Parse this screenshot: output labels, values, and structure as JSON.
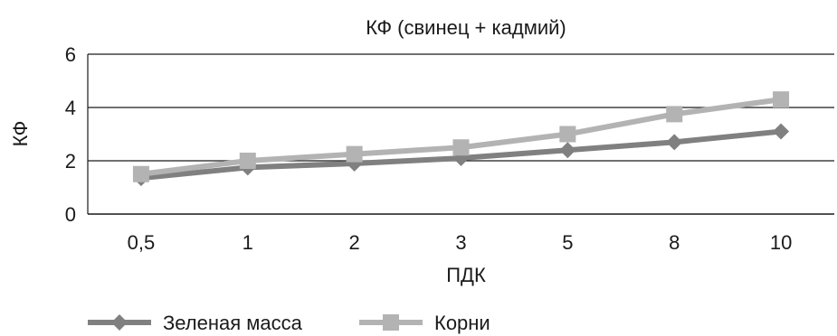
{
  "chart_data": {
    "type": "line",
    "title": "КФ (свинец + кадмий)",
    "xlabel": "ПДК",
    "ylabel": "КФ",
    "categories": [
      "0,5",
      "1",
      "2",
      "3",
      "5",
      "8",
      "10"
    ],
    "ylim": [
      0,
      6
    ],
    "yticks": [
      0,
      2,
      4,
      6
    ],
    "grid": true,
    "legend_position": "bottom",
    "series": [
      {
        "name": "Зеленая масса",
        "values": [
          1.35,
          1.75,
          1.9,
          2.1,
          2.4,
          2.7,
          3.1
        ],
        "color": "#808080",
        "marker": "diamond"
      },
      {
        "name": "Корни",
        "values": [
          1.5,
          2.0,
          2.25,
          2.5,
          3.0,
          3.75,
          4.3
        ],
        "color": "#b3b3b3",
        "marker": "square"
      }
    ]
  }
}
